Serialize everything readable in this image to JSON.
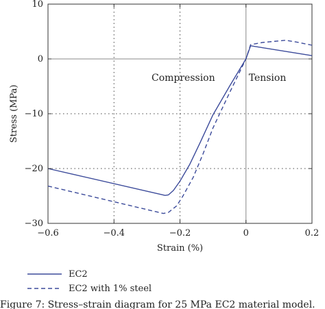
{
  "chart_data": {
    "type": "line",
    "title": "",
    "xlabel": "Strain (%)",
    "ylabel": "Stress (MPa)",
    "xlim": [
      -0.6,
      0.2
    ],
    "ylim": [
      -30,
      10
    ],
    "x_ticks": [
      -0.6,
      -0.4,
      -0.2,
      0,
      0.2
    ],
    "x_tick_labels": [
      "−0.6",
      "−0.4",
      "−0.2",
      "0",
      "0.2"
    ],
    "y_ticks": [
      -30,
      -20,
      -10,
      0,
      10
    ],
    "y_tick_labels": [
      "−30",
      "−20",
      "−10",
      "0",
      "10"
    ],
    "grid": "dotted",
    "reference_lines": {
      "x": 0,
      "y": 0
    },
    "annotations": [
      {
        "text": "Compression",
        "x": -0.19,
        "y": -4
      },
      {
        "text": "Tension",
        "x": 0.065,
        "y": -4
      }
    ],
    "legend_position": "below",
    "series": [
      {
        "name": "EC2",
        "style": "solid",
        "color": "#3b4a9a",
        "points": [
          [
            -0.6,
            -20.0
          ],
          [
            -0.245,
            -24.9
          ],
          [
            -0.235,
            -24.8
          ],
          [
            -0.22,
            -24.0
          ],
          [
            -0.2,
            -22.3
          ],
          [
            -0.17,
            -19.2
          ],
          [
            -0.14,
            -15.4
          ],
          [
            -0.1,
            -10.2
          ],
          [
            -0.05,
            -5.0
          ],
          [
            0.0,
            0.0
          ],
          [
            0.014,
            2.4
          ],
          [
            0.2,
            0.6
          ]
        ]
      },
      {
        "name": "EC2 with 1% steel",
        "style": "dashed",
        "color": "#3b4a9a",
        "points": [
          [
            -0.6,
            -23.2
          ],
          [
            -0.25,
            -28.2
          ],
          [
            -0.235,
            -28.0
          ],
          [
            -0.21,
            -26.8
          ],
          [
            -0.19,
            -24.9
          ],
          [
            -0.16,
            -21.6
          ],
          [
            -0.13,
            -17.3
          ],
          [
            -0.1,
            -12.6
          ],
          [
            -0.05,
            -6.2
          ],
          [
            0.0,
            0.0
          ],
          [
            0.014,
            2.6
          ],
          [
            0.05,
            3.0
          ],
          [
            0.12,
            3.4
          ],
          [
            0.16,
            3.0
          ],
          [
            0.2,
            2.5
          ]
        ]
      }
    ]
  },
  "caption": "Figure 7: Stress–strain diagram for 25 MPa EC2 material model."
}
